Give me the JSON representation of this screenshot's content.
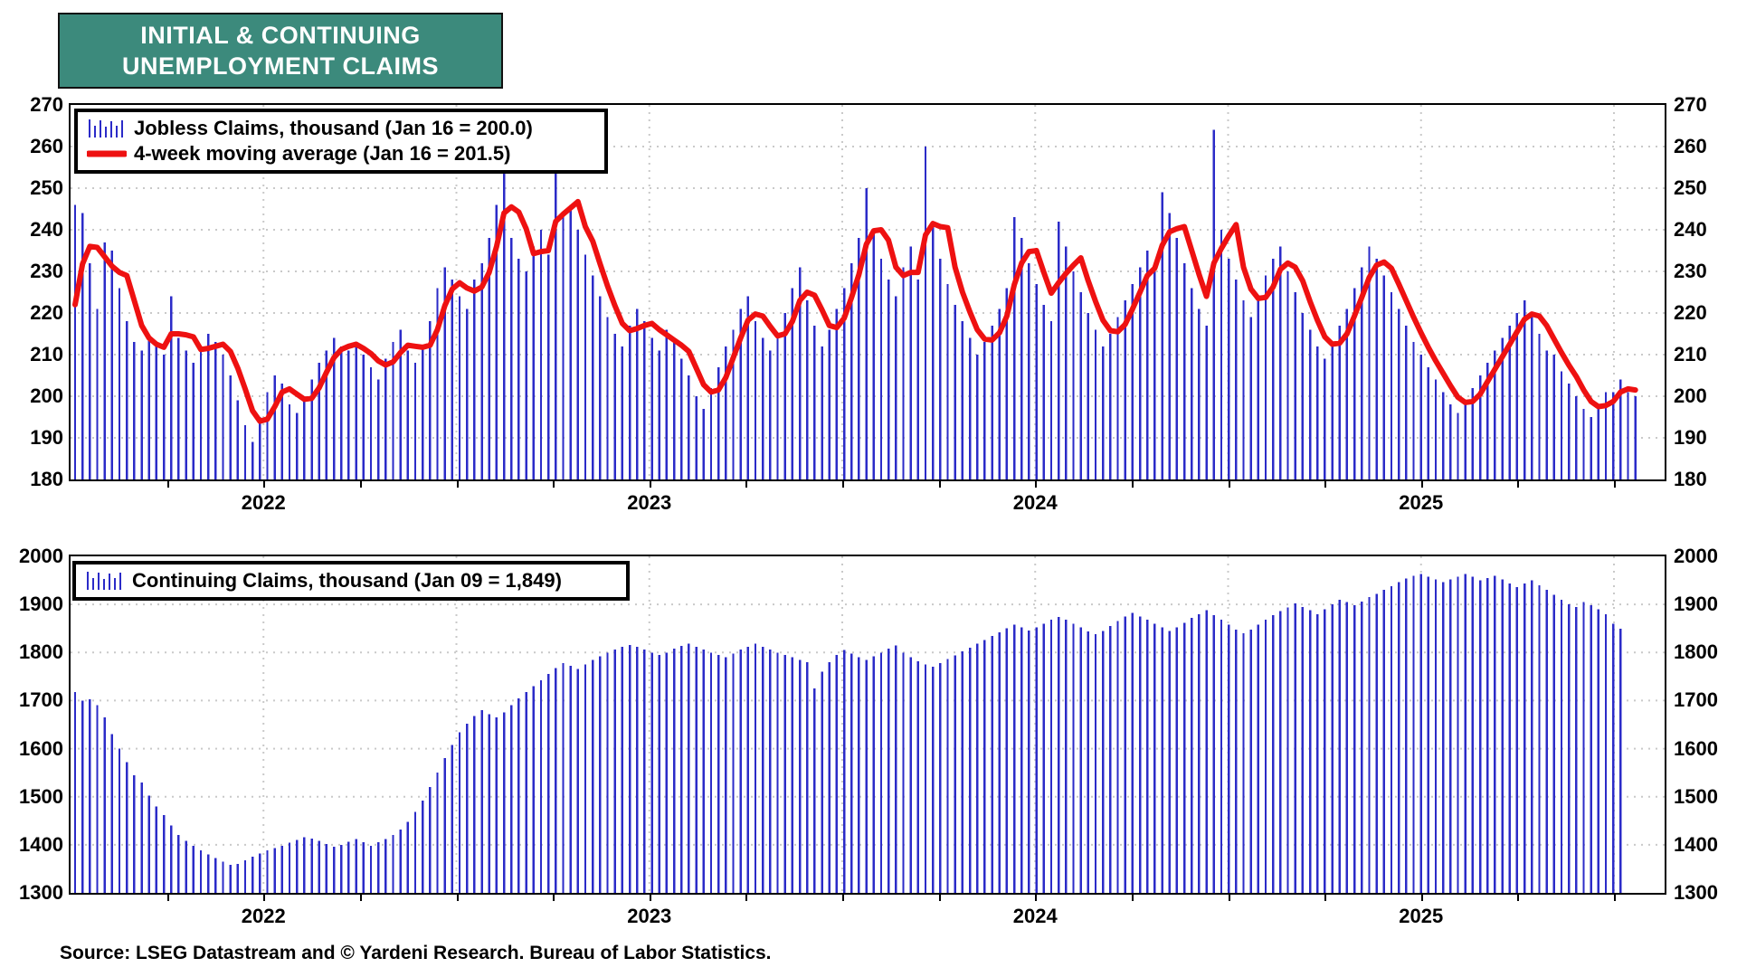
{
  "title": {
    "line1": "INITIAL & CONTINUING",
    "line2": "UNEMPLOYMENT CLAIMS"
  },
  "source_line": "Source: LSEG Datastream and © Yardeni Research. Bureau of Labor Statistics.",
  "colors": {
    "title_bg": "#3C8A7C",
    "bar": "#2B2BC8",
    "ma_line": "#EE1111",
    "grid": "#C9C9C9",
    "axis": "#000000",
    "text": "#000000"
  },
  "x_axis": {
    "year_labels": [
      "2022",
      "2023",
      "2024",
      "2025"
    ]
  },
  "chart_data": [
    {
      "type": "bar",
      "name": "initial-claims",
      "title": "Jobless Claims",
      "legend": [
        {
          "icon": "bars",
          "label": "Jobless Claims, thousand (Jan 16 = 200.0)"
        },
        {
          "icon": "line",
          "label": "4-week moving average (Jan 16 = 201.5)"
        }
      ],
      "ylabel": "thousand",
      "ylim": [
        180,
        270
      ],
      "ytick_step": 10,
      "latest": {
        "date": "Jan 16",
        "value": 200.0,
        "ma_value": 201.5
      },
      "ma_warmup": [
        205,
        215,
        222
      ],
      "values": [
        246,
        244,
        232,
        221,
        237,
        235,
        226,
        218,
        213,
        211,
        214,
        212,
        210,
        224,
        214,
        211,
        208,
        212,
        215,
        213,
        210,
        205,
        199,
        193,
        189,
        195,
        201,
        205,
        203,
        198,
        196,
        200,
        204,
        208,
        211,
        214,
        212,
        211,
        213,
        210,
        207,
        204,
        209,
        213,
        216,
        211,
        208,
        212,
        218,
        226,
        231,
        228,
        224,
        221,
        228,
        232,
        238,
        246,
        260,
        238,
        233,
        230,
        236,
        240,
        234,
        258,
        243,
        246,
        240,
        234,
        229,
        224,
        219,
        215,
        212,
        217,
        221,
        218,
        214,
        211,
        216,
        213,
        209,
        205,
        200,
        197,
        202,
        207,
        212,
        216,
        221,
        224,
        218,
        214,
        211,
        215,
        220,
        226,
        231,
        223,
        217,
        212,
        216,
        221,
        226,
        232,
        238,
        250,
        239,
        233,
        228,
        224,
        231,
        236,
        228,
        260,
        242,
        233,
        227,
        222,
        218,
        214,
        210,
        213,
        217,
        221,
        226,
        243,
        238,
        232,
        227,
        222,
        218,
        242,
        236,
        230,
        225,
        220,
        216,
        212,
        215,
        219,
        223,
        227,
        231,
        235,
        230,
        249,
        244,
        238,
        232,
        226,
        221,
        217,
        264,
        240,
        233,
        228,
        223,
        219,
        224,
        229,
        233,
        236,
        230,
        225,
        220,
        216,
        212,
        209,
        213,
        217,
        221,
        226,
        231,
        236,
        233,
        229,
        225,
        221,
        217,
        213,
        210,
        207,
        204,
        201,
        198,
        196,
        199,
        202,
        205,
        208,
        211,
        214,
        217,
        220,
        223,
        219,
        215,
        211,
        210,
        206,
        203,
        200,
        197,
        195,
        198,
        201,
        201,
        204,
        201,
        200
      ]
    },
    {
      "type": "bar",
      "name": "continuing-claims",
      "title": "Continuing Claims",
      "legend": [
        {
          "icon": "bars",
          "label": "Continuing Claims, thousand (Jan 09 = 1,849)"
        }
      ],
      "ylabel": "thousand",
      "ylim": [
        1300,
        2000
      ],
      "ytick_step": 100,
      "latest": {
        "date": "Jan 09",
        "value": 1849
      },
      "values": [
        1718,
        1700,
        1703,
        1690,
        1665,
        1630,
        1600,
        1572,
        1545,
        1530,
        1502,
        1480,
        1462,
        1440,
        1420,
        1408,
        1398,
        1388,
        1380,
        1372,
        1365,
        1358,
        1360,
        1368,
        1375,
        1382,
        1388,
        1393,
        1398,
        1404,
        1410,
        1416,
        1413,
        1408,
        1402,
        1396,
        1400,
        1406,
        1412,
        1405,
        1398,
        1405,
        1412,
        1420,
        1432,
        1448,
        1468,
        1492,
        1520,
        1550,
        1580,
        1608,
        1634,
        1652,
        1668,
        1680,
        1672,
        1665,
        1675,
        1690,
        1705,
        1718,
        1730,
        1742,
        1755,
        1768,
        1778,
        1772,
        1766,
        1775,
        1785,
        1792,
        1800,
        1806,
        1812,
        1816,
        1812,
        1806,
        1800,
        1795,
        1800,
        1808,
        1814,
        1818,
        1812,
        1806,
        1800,
        1795,
        1790,
        1798,
        1806,
        1812,
        1818,
        1812,
        1806,
        1800,
        1795,
        1790,
        1785,
        1780,
        1725,
        1760,
        1780,
        1795,
        1805,
        1798,
        1790,
        1785,
        1792,
        1800,
        1808,
        1815,
        1800,
        1790,
        1782,
        1775,
        1770,
        1778,
        1786,
        1794,
        1802,
        1810,
        1818,
        1826,
        1834,
        1842,
        1850,
        1858,
        1852,
        1846,
        1852,
        1860,
        1868,
        1874,
        1868,
        1860,
        1852,
        1844,
        1838,
        1845,
        1855,
        1865,
        1875,
        1882,
        1875,
        1868,
        1860,
        1852,
        1845,
        1852,
        1862,
        1872,
        1880,
        1888,
        1878,
        1868,
        1858,
        1848,
        1840,
        1848,
        1858,
        1868,
        1878,
        1886,
        1894,
        1902,
        1895,
        1888,
        1880,
        1890,
        1900,
        1910,
        1905,
        1898,
        1906,
        1915,
        1922,
        1930,
        1938,
        1946,
        1954,
        1960,
        1963,
        1958,
        1952,
        1946,
        1952,
        1958,
        1963,
        1958,
        1950,
        1955,
        1960,
        1952,
        1944,
        1936,
        1944,
        1950,
        1940,
        1930,
        1920,
        1910,
        1900,
        1895,
        1905,
        1898,
        1890,
        1880,
        1860,
        1849
      ]
    }
  ]
}
